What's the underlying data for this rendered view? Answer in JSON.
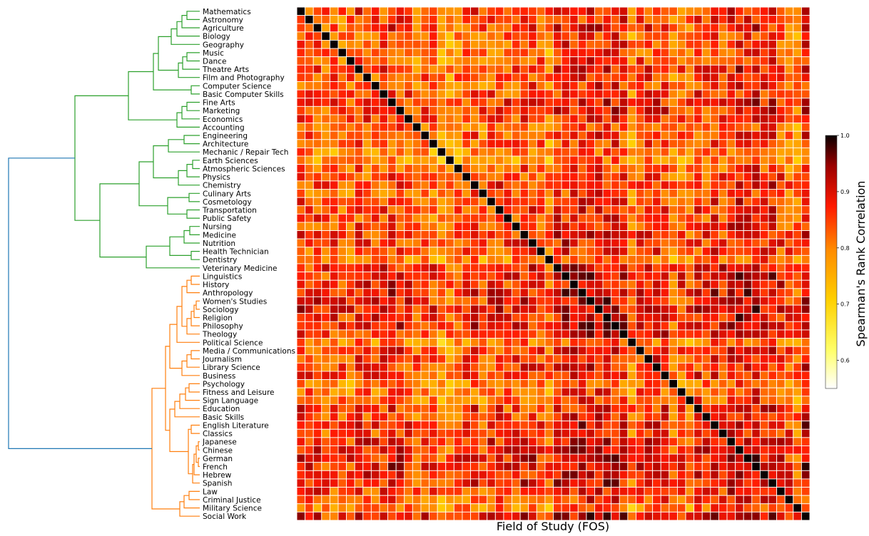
{
  "chart_data": {
    "type": "heatmap",
    "title": "",
    "xlabel": "Field of Study (FOS)",
    "ylabel": "",
    "categories": [
      "Mathematics",
      "Astronomy",
      "Agriculture",
      "Biology",
      "Geography",
      "Music",
      "Dance",
      "Theatre Arts",
      "Film and Photography",
      "Computer Science",
      "Basic Computer Skills",
      "Fine Arts",
      "Marketing",
      "Economics",
      "Accounting",
      "Engineering",
      "Architecture",
      "Mechanic / Repair Tech",
      "Earth Sciences",
      "Atmospheric Sciences",
      "Physics",
      "Chemistry",
      "Culinary Arts",
      "Cosmetology",
      "Transportation",
      "Public Safety",
      "Nursing",
      "Medicine",
      "Nutrition",
      "Health Technician",
      "Dentistry",
      "Veterinary Medicine",
      "Linguistics",
      "History",
      "Anthropology",
      "Women's Studies",
      "Sociology",
      "Religion",
      "Philosophy",
      "Theology",
      "Political Science",
      "Media / Communications",
      "Journalism",
      "Library Science",
      "Business",
      "Psychology",
      "Fitness and Leisure",
      "Sign Language",
      "Education",
      "Basic Skills",
      "English Literature",
      "Classics",
      "Japanese",
      "Chinese",
      "German",
      "French",
      "Hebrew",
      "Spanish",
      "Law",
      "Criminal Justice",
      "Military Science",
      "Social Work"
    ],
    "diagonal_value": 1.0,
    "value_range": [
      0.55,
      1.0
    ],
    "row_mean_correlation": [
      0.86,
      0.83,
      0.85,
      0.81,
      0.82,
      0.8,
      0.81,
      0.86,
      0.84,
      0.82,
      0.84,
      0.88,
      0.87,
      0.85,
      0.78,
      0.82,
      0.8,
      0.74,
      0.72,
      0.8,
      0.83,
      0.86,
      0.8,
      0.84,
      0.85,
      0.83,
      0.84,
      0.87,
      0.86,
      0.84,
      0.76,
      0.9,
      0.91,
      0.9,
      0.91,
      0.92,
      0.92,
      0.91,
      0.91,
      0.89,
      0.75,
      0.86,
      0.87,
      0.86,
      0.87,
      0.76,
      0.8,
      0.8,
      0.87,
      0.85,
      0.89,
      0.86,
      0.91,
      0.92,
      0.92,
      0.92,
      0.91,
      0.9,
      0.86,
      0.82,
      0.76,
      0.92
    ],
    "colorbar": {
      "label": "Spearman's Rank Correlation",
      "ticks": [
        1.0,
        0.9,
        0.8,
        0.7,
        0.6
      ],
      "tick_labels": [
        "1.0",
        "0.9",
        "0.8",
        "0.7",
        "0.6"
      ],
      "colormap": "hot_r"
    },
    "dendrogram": {
      "clusters": [
        {
          "color": "#2ca02c",
          "members_from": "Mathematics",
          "members_to": "Veterinary Medicine"
        },
        {
          "color": "#ff7f0e",
          "members_from": "Linguistics",
          "members_to": "Social Work"
        }
      ],
      "root_color": "#1f77b4"
    },
    "grid": true
  }
}
